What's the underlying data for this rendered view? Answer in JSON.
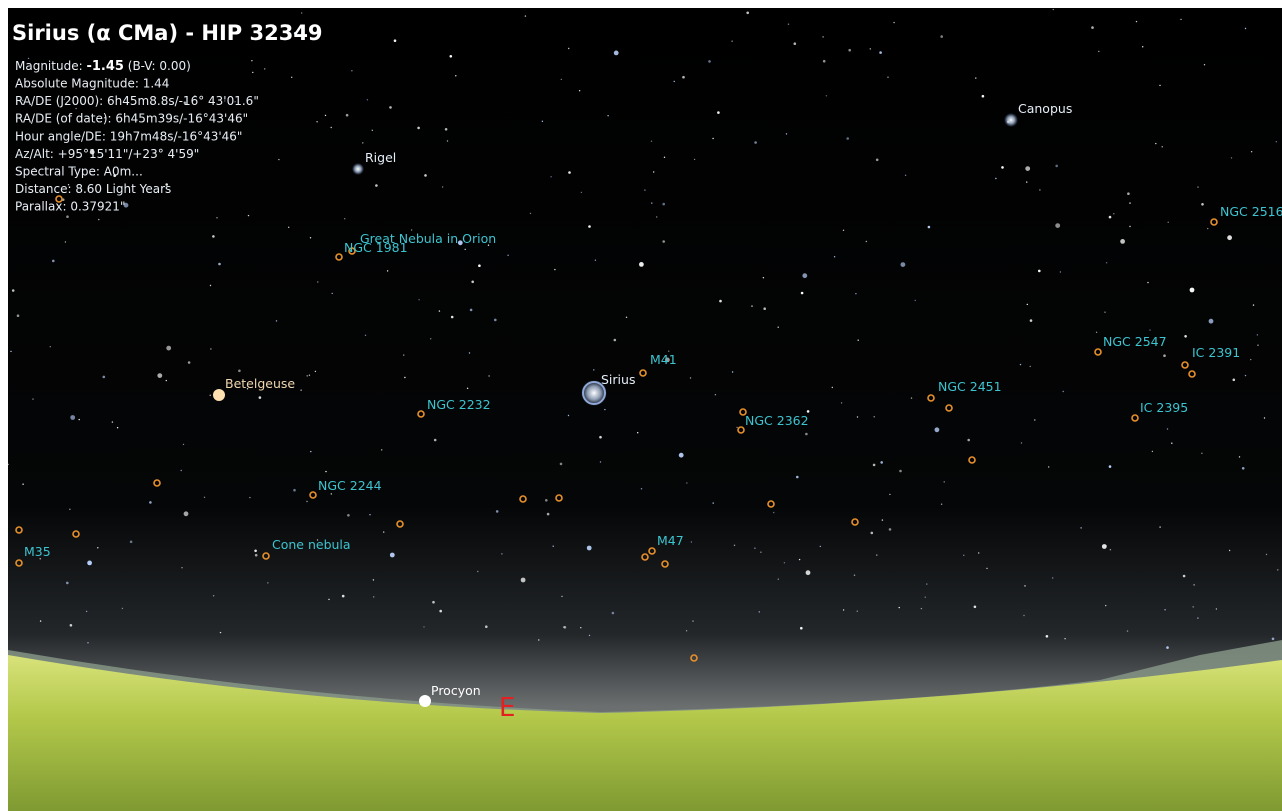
{
  "info_panel": {
    "title": "Sirius (α CMa) - HIP 32349",
    "magnitude": {
      "label": "Magnitude:",
      "value": "-1.45",
      "color_index": "(B-V: 0.00)"
    },
    "lines": [
      "Absolute Magnitude: 1.44",
      "RA/DE (J2000): 6h45m8.8s/-16° 43'01.6\"",
      "RA/DE (of date): 6h45m39s/-16°43'46\"",
      "Hour angle/DE: 19h7m48s/-16°43'46\"",
      "Az/Alt: +95°15'11\"/+23° 4'59\"",
      "Spectral Type: A0m...",
      "Distance: 8.60 Light Years",
      "Parallax: 0.37921\""
    ]
  },
  "sky_labels": [
    "Rigel",
    "Canopus",
    "NGC 2516",
    "Great Nebula in Orion",
    "NGC 1981",
    "NGC 2547",
    "IC 2391",
    "M41",
    "Sirius",
    "Betelgeuse",
    "NGC 2451",
    "NGC 2232",
    "NGC 2362",
    "IC 2395",
    "NGC 2244",
    "Cone nebula",
    "M35",
    "M47",
    "Procyon"
  ],
  "cardinal": "E"
}
